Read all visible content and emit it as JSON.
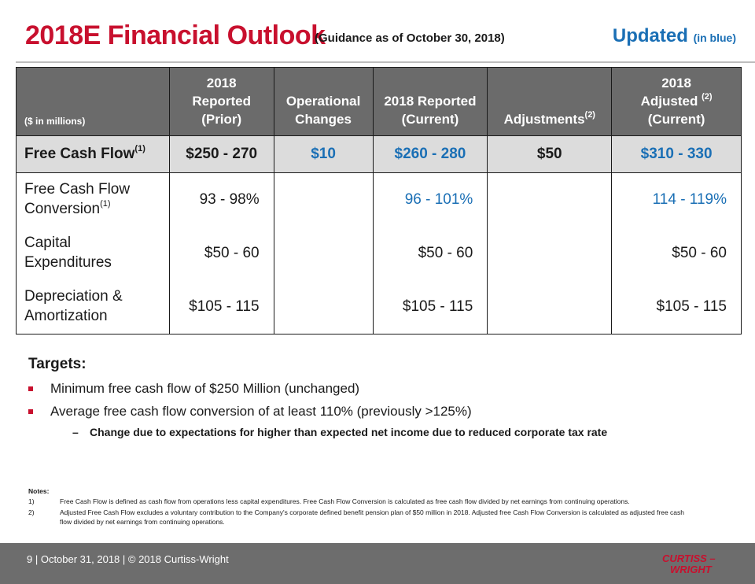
{
  "header": {
    "title": "2018E Financial Outlook",
    "subtitle": "(Guidance as of October 30, 2018)",
    "updated_label": "Updated",
    "updated_note": "(in blue)"
  },
  "table": {
    "unit_label": "($ in millions)",
    "columns": [
      {
        "line1": "2018",
        "line2": "Reported",
        "line3": "(Prior)"
      },
      {
        "line1": "",
        "line2": "Operational",
        "line3": "Changes"
      },
      {
        "line1": "",
        "line2": "2018 Reported",
        "line3": "(Current)"
      },
      {
        "line1": "",
        "line2": "",
        "line3": "Adjustments",
        "sup": "(2)"
      },
      {
        "line1": "2018",
        "line2": "Adjusted",
        "line2_sup": "(2)",
        "line3": "(Current)"
      }
    ],
    "rows": [
      {
        "label1": "Free Cash Flow",
        "label_sup": "(1)",
        "label2": "",
        "prior": "$250 - 270",
        "ops": "$10",
        "current": "$260 - 280",
        "adj": "$50",
        "adjusted": "$310 - 330"
      },
      {
        "label1": "Free Cash Flow",
        "label2": "Conversion",
        "label_sup": "(1)",
        "prior": "93 - 98%",
        "ops": "",
        "current": "96 - 101%",
        "adj": "",
        "adjusted": "114 - 119%"
      },
      {
        "label1": "Capital",
        "label2": "Expenditures",
        "prior": "$50 - 60",
        "ops": "",
        "current": "$50 - 60",
        "adj": "",
        "adjusted": "$50 - 60"
      },
      {
        "label1": "Depreciation &",
        "label2": "Amortization",
        "prior": "$105 - 115",
        "ops": "",
        "current": "$105 - 115",
        "adj": "",
        "adjusted": "$105 - 115"
      }
    ]
  },
  "targets": {
    "heading": "Targets:",
    "bullets": [
      "Minimum free cash flow of $250 Million (unchanged)",
      "Average free cash flow conversion of at least 110% (previously >125%)"
    ],
    "dash_mark": "–",
    "sub_bullet": "Change due to expectations for higher than expected net income due to reduced corporate tax rate"
  },
  "notes": {
    "heading": "Notes:",
    "items": [
      {
        "num": "1)",
        "text": "Free Cash Flow is defined as cash flow from operations less capital expenditures. Free Cash Flow Conversion is calculated as free cash flow divided by net earnings from continuing operations."
      },
      {
        "num": "2)",
        "text": "Adjusted Free Cash Flow excludes a voluntary contribution to the Company's corporate defined benefit pension plan of $50 million in 2018. Adjusted free Cash Flow Conversion is calculated as adjusted free cash flow divided by net earnings from continuing operations."
      }
    ]
  },
  "footer": {
    "text": "9  | October 31, 2018  |  © 2018 Curtiss-Wright",
    "logo_line1": "CURTISS –",
    "logo_line2": "WRIGHT"
  },
  "colors": {
    "title_red": "#c8102e",
    "update_blue": "#1a6fb5",
    "header_gray": "#6b6b6b",
    "fcf_row_gray": "#dcdcdc",
    "footer_gray": "#6d6d6d"
  }
}
